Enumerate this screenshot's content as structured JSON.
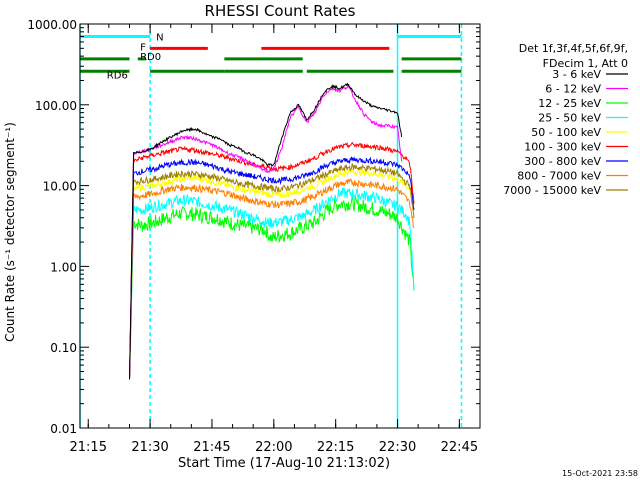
{
  "chart_data": {
    "type": "line",
    "title": "RHESSI Count Rates",
    "xlabel": "Start Time (17-Aug-10 21:13:02)",
    "ylabel": "Count Rate (s⁻¹ detector segment⁻¹)",
    "yscale": "log",
    "xlim": [
      0,
      97
    ],
    "ylim": [
      0.01,
      1000
    ],
    "x_ticks": [
      {
        "v": 2,
        "label": "21:15"
      },
      {
        "v": 17,
        "label": "21:30"
      },
      {
        "v": 32,
        "label": "21:45"
      },
      {
        "v": 47,
        "label": "22:00"
      },
      {
        "v": 62,
        "label": "22:15"
      },
      {
        "v": 77,
        "label": "22:30"
      },
      {
        "v": 92,
        "label": "22:45"
      }
    ],
    "y_ticks": [
      {
        "v": 1000,
        "label": "1000.00"
      },
      {
        "v": 100,
        "label": "100.00"
      },
      {
        "v": 10,
        "label": "10.00"
      },
      {
        "v": 1,
        "label": "1.00"
      },
      {
        "v": 0.1,
        "label": "0.10"
      },
      {
        "v": 0.01,
        "label": "0.01"
      }
    ],
    "legend_header": [
      "Det 1f,3f,4f,5f,6f,9f,",
      "FDecim 1, Att 0"
    ],
    "legend_placement": "top-right",
    "series": [
      {
        "name": "3 - 6 keV",
        "color": "#000000",
        "x": [
          12,
          13,
          17,
          20,
          25,
          28,
          32,
          34,
          36,
          38,
          40,
          42,
          44,
          45.5,
          47,
          49,
          51,
          53,
          55,
          57,
          59,
          61,
          63,
          65,
          67,
          69,
          71,
          73,
          75,
          77,
          78
        ],
        "y": [
          0.04,
          25,
          28,
          35,
          48,
          50,
          40,
          38,
          32,
          30,
          26,
          24,
          21,
          18,
          18,
          40,
          80,
          100,
          65,
          90,
          140,
          170,
          160,
          180,
          130,
          110,
          95,
          90,
          85,
          80,
          40
        ]
      },
      {
        "name": "6 - 12 keV",
        "color": "#ff00ff",
        "x": [
          12,
          13,
          17,
          20,
          25,
          28,
          32,
          36,
          40,
          44,
          45.5,
          47,
          49,
          51,
          53,
          55,
          57,
          59,
          61,
          63,
          65,
          67,
          69,
          71,
          73,
          75,
          77,
          78
        ],
        "y": [
          0.04,
          25,
          28,
          32,
          40,
          38,
          32,
          25,
          21,
          16,
          15,
          16,
          30,
          70,
          95,
          60,
          80,
          130,
          160,
          150,
          170,
          110,
          75,
          60,
          55,
          55,
          52,
          20
        ]
      },
      {
        "name": "12 - 25 keV",
        "color": "#00ff00",
        "x": [
          12,
          13,
          15,
          18,
          21,
          24,
          27,
          30,
          33,
          36,
          39,
          42,
          45,
          46.5,
          48,
          51,
          54,
          57,
          60,
          63,
          66,
          69,
          72,
          75,
          77,
          79,
          80,
          81
        ],
        "y": [
          0.04,
          3.5,
          3.2,
          3.5,
          4,
          4.5,
          4.5,
          4.2,
          4,
          3.5,
          3.2,
          3,
          2.8,
          2.2,
          2.4,
          2.6,
          3,
          3.5,
          5,
          6,
          6,
          5.5,
          5,
          4.5,
          4,
          2.5,
          2,
          0.5
        ]
      },
      {
        "name": "25 - 50 keV",
        "color": "#00ffff",
        "x": [
          12,
          13,
          15,
          18,
          21,
          24,
          27,
          30,
          33,
          36,
          39,
          42,
          45,
          48,
          51,
          54,
          57,
          60,
          63,
          66,
          69,
          72,
          75,
          77,
          79,
          80,
          81
        ],
        "y": [
          0.04,
          5,
          5,
          5.5,
          6,
          6.5,
          6.5,
          6,
          5.5,
          5,
          4.5,
          4,
          3.5,
          3.5,
          3.8,
          4.2,
          5,
          6.5,
          8,
          8,
          7.5,
          7,
          6,
          5.5,
          4.5,
          3.5,
          0.5
        ]
      },
      {
        "name": "50 - 100 keV",
        "color": "#ffff00",
        "x": [
          12,
          13,
          15,
          18,
          21,
          24,
          27,
          30,
          33,
          36,
          39,
          42,
          45,
          48,
          51,
          54,
          57,
          60,
          63,
          66,
          69,
          72,
          75,
          77,
          79,
          80,
          81
        ],
        "y": [
          0.04,
          9,
          9.5,
          10,
          11,
          12,
          12.5,
          12,
          11,
          10,
          9,
          8.5,
          8,
          7.5,
          8,
          9,
          10,
          12,
          14,
          15,
          14.5,
          14,
          13,
          12,
          10,
          9,
          5
        ]
      },
      {
        "name": "100 - 300 keV",
        "color": "#ff0000",
        "x": [
          12,
          13,
          15,
          18,
          21,
          24,
          27,
          30,
          33,
          36,
          39,
          42,
          45,
          48,
          51,
          54,
          57,
          60,
          63,
          66,
          69,
          72,
          75,
          77,
          79,
          80,
          81
        ],
        "y": [
          0.04,
          20,
          22,
          24,
          26,
          28,
          28,
          26,
          24,
          22,
          20,
          18,
          17,
          16,
          17,
          19,
          22,
          27,
          30,
          32,
          31,
          30,
          28,
          26,
          22,
          18,
          6
        ]
      },
      {
        "name": "300 - 800 keV",
        "color": "#0000ff",
        "x": [
          12,
          13,
          15,
          18,
          21,
          24,
          27,
          30,
          33,
          36,
          39,
          42,
          45,
          48,
          51,
          54,
          57,
          60,
          63,
          66,
          69,
          72,
          75,
          77,
          79,
          80,
          81
        ],
        "y": [
          0.04,
          14,
          15,
          16,
          18,
          19,
          19.5,
          18.5,
          17,
          15,
          14,
          13,
          12,
          11.5,
          12,
          13,
          15,
          18,
          20,
          21,
          20.5,
          20,
          19,
          18,
          15,
          13,
          5
        ]
      },
      {
        "name": "800 - 7000 keV",
        "color": "#ff8000",
        "x": [
          12,
          13,
          15,
          18,
          21,
          24,
          27,
          30,
          33,
          36,
          39,
          42,
          45,
          48,
          51,
          54,
          57,
          60,
          63,
          66,
          69,
          72,
          75,
          77,
          79,
          80,
          81
        ],
        "y": [
          0.04,
          7,
          7.5,
          8,
          9,
          9.5,
          9.5,
          9,
          8.5,
          8,
          7,
          6.5,
          6,
          5.8,
          6,
          6.5,
          7.5,
          9,
          10.5,
          11,
          10.5,
          10,
          9.5,
          9,
          7,
          6,
          3
        ]
      },
      {
        "name": "7000 - 15000 keV",
        "color": "#a08000",
        "x": [
          12,
          13,
          15,
          18,
          21,
          24,
          27,
          30,
          33,
          36,
          39,
          42,
          45,
          48,
          51,
          54,
          57,
          60,
          63,
          66,
          69,
          72,
          75,
          77,
          79,
          80,
          81
        ],
        "y": [
          0.04,
          11,
          11.5,
          12,
          13,
          14,
          14,
          13.5,
          12.5,
          11.5,
          10.5,
          10,
          9.5,
          9,
          9.5,
          10.5,
          12,
          14,
          16,
          17,
          16.5,
          16,
          15,
          14,
          11,
          10,
          4
        ]
      }
    ],
    "state_bars": [
      {
        "label": "N",
        "color": "#00ffff",
        "y": 700,
        "segments": [
          [
            0,
            17
          ],
          [
            77,
            92.5
          ]
        ]
      },
      {
        "label": "F",
        "color": "#ff0000",
        "y": 500,
        "segments": [
          [
            17,
            31
          ],
          [
            44,
            75
          ]
        ]
      },
      {
        "label": "RD0",
        "color": "#00a000",
        "y": 370,
        "segments": []
      },
      {
        "label": "RD6",
        "color": "#008000",
        "y": 260,
        "segments": [
          [
            0,
            12
          ],
          [
            17,
            35
          ],
          [
            35,
            54
          ],
          [
            55,
            76
          ],
          [
            78,
            92.5
          ]
        ]
      }
    ],
    "state_bars_extra": [
      {
        "color": "#008000",
        "y": 370,
        "segments": [
          [
            0,
            12
          ],
          [
            14,
            16
          ],
          [
            35,
            54
          ],
          [
            78,
            92.5
          ]
        ]
      }
    ],
    "vlines": [
      {
        "x": 0,
        "color": "#00ffff",
        "dashed": false
      },
      {
        "x": 17,
        "color": "#00ffff",
        "dashed": true
      },
      {
        "x": 77,
        "color": "#00ffff",
        "dashed": false
      },
      {
        "x": 92.5,
        "color": "#00ffff",
        "dashed": true
      }
    ],
    "footer": "15-Oct-2021 23:58"
  }
}
